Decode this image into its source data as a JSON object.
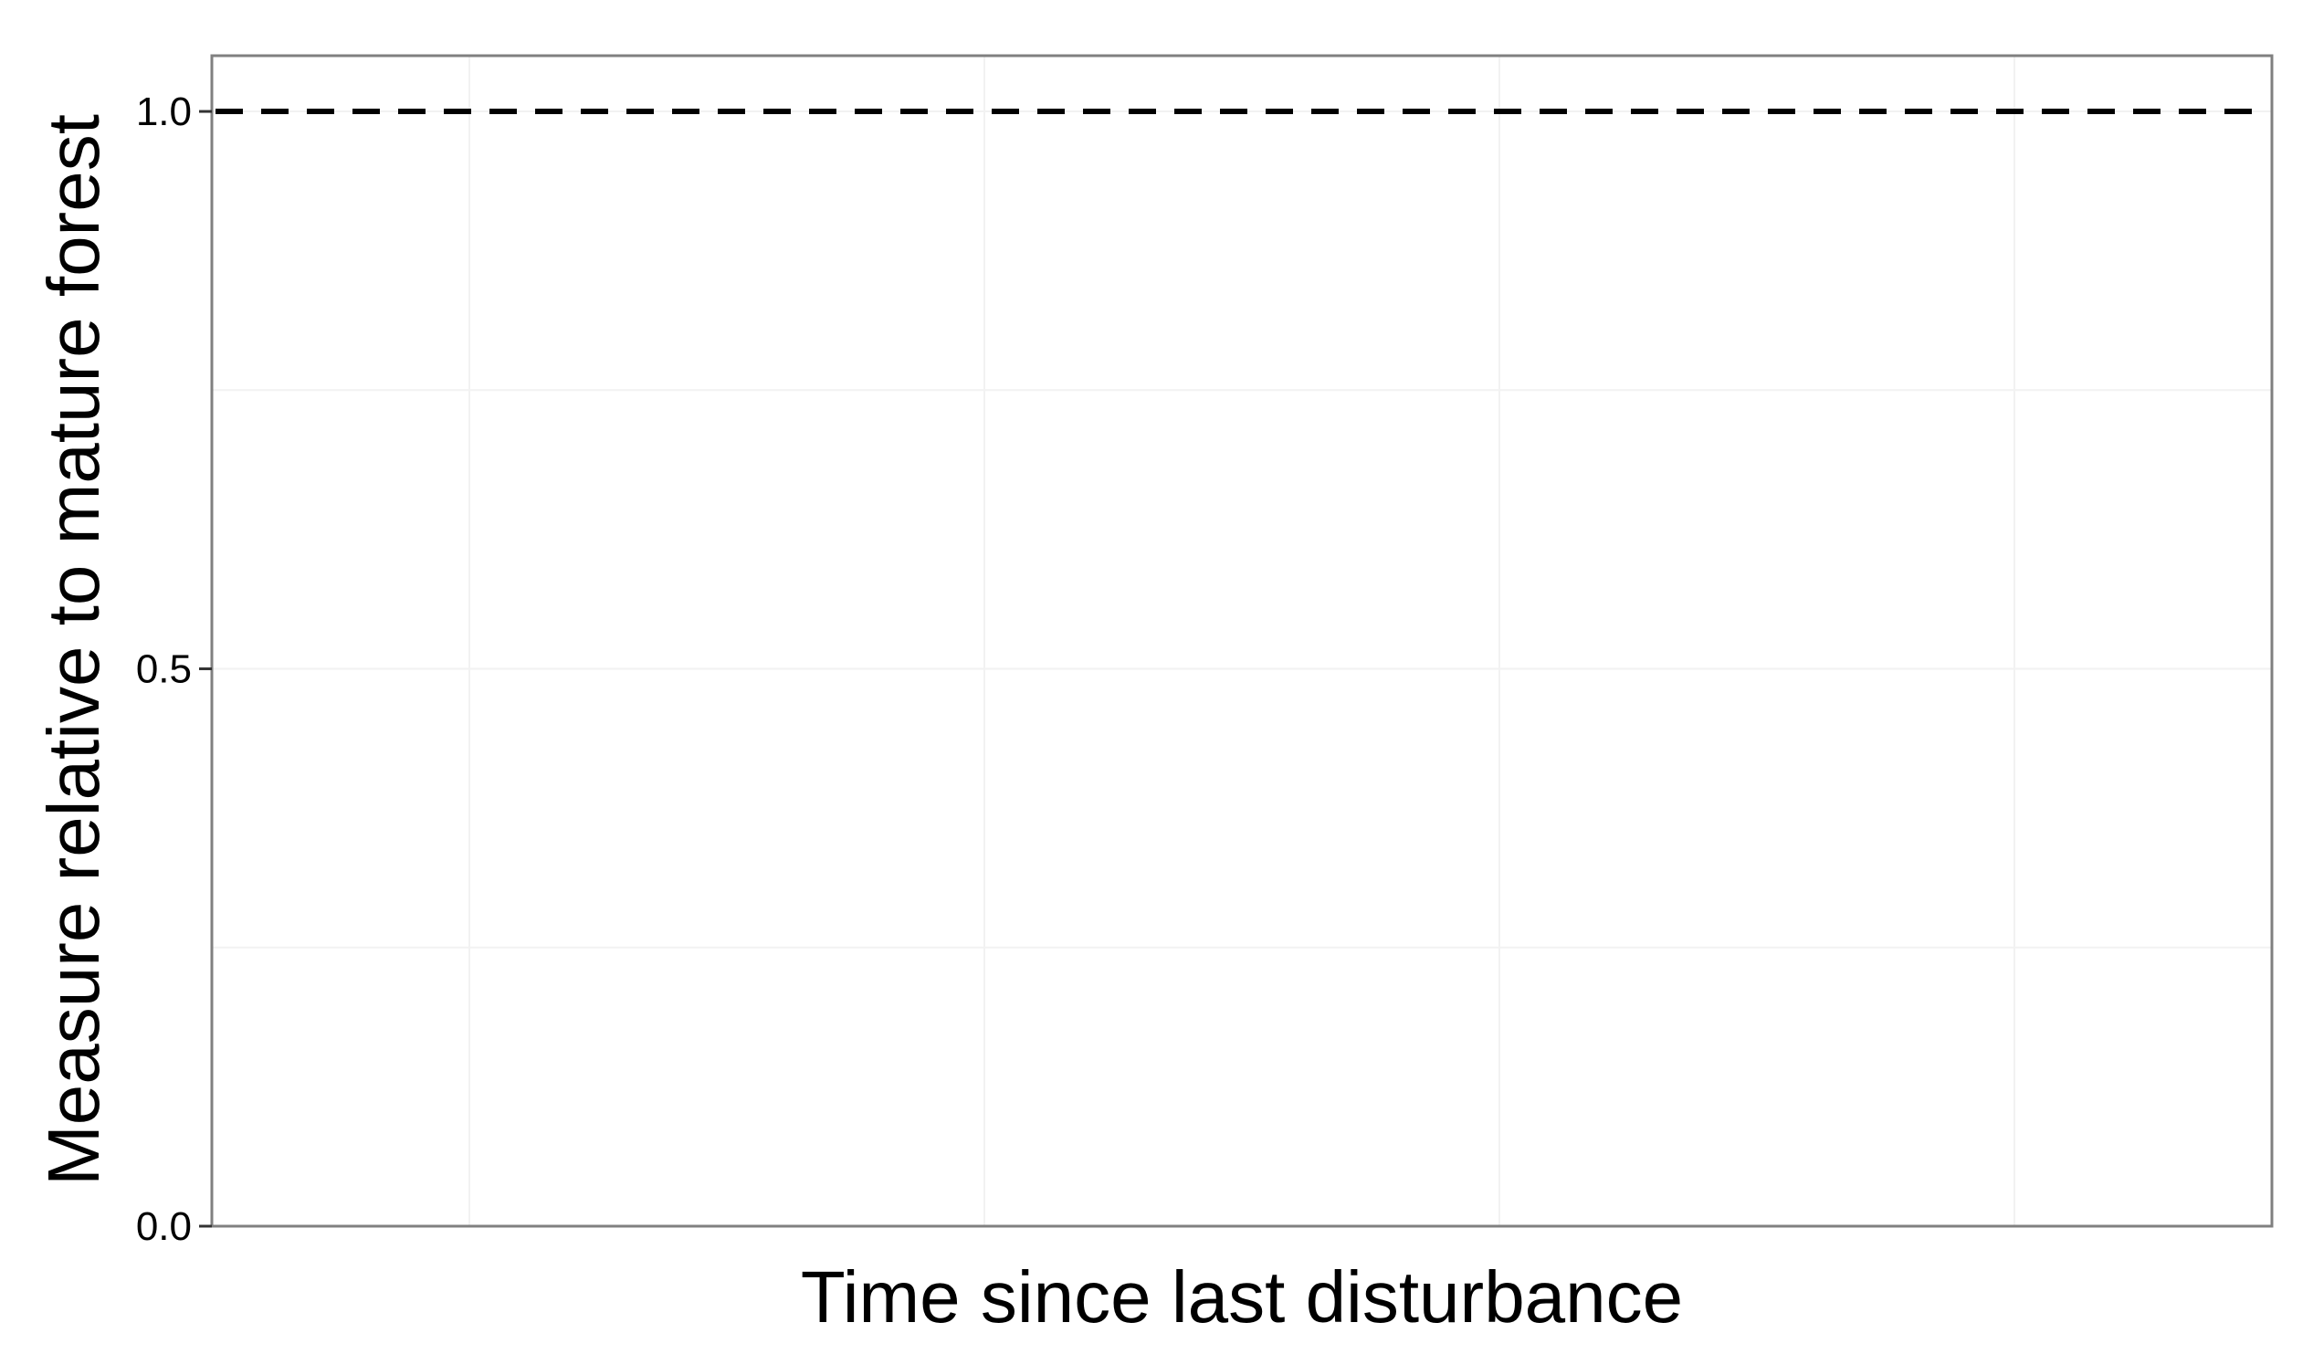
{
  "chart_data": {
    "type": "line",
    "title": "",
    "xlabel": "Time since last disturbance",
    "ylabel": "Measure relative to mature forest",
    "ylim": [
      0,
      1.05
    ],
    "y_ticks": [
      0.0,
      0.5,
      1.0
    ],
    "y_tick_labels": [
      "0.0",
      "0.5",
      "1.0"
    ],
    "x_ticks_shown": false,
    "grid": true,
    "reference_lines": [
      {
        "y": 1.0,
        "style": "dashed",
        "color": "#000000"
      }
    ],
    "series": []
  },
  "colors": {
    "background": "#ffffff",
    "panel_border": "#808080",
    "grid": "#f2f2f2",
    "reference_line": "#000000"
  }
}
